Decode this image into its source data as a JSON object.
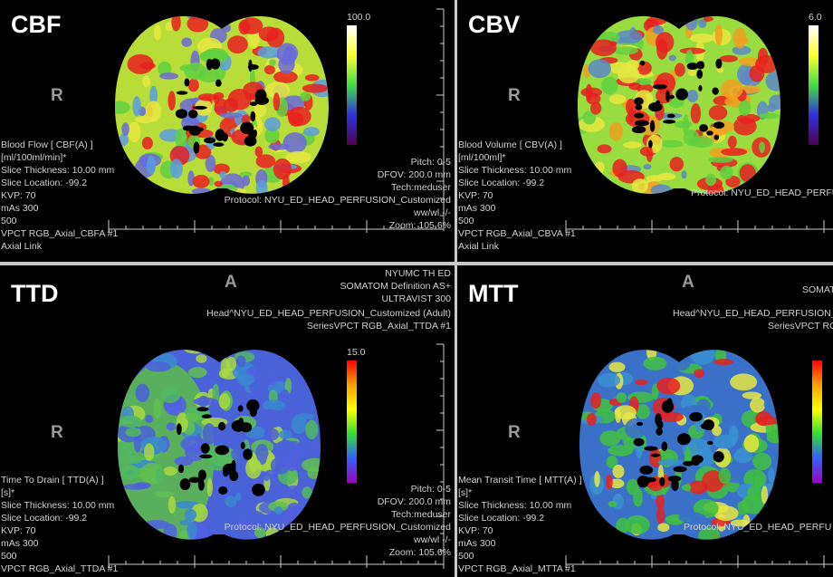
{
  "panels": [
    {
      "label": "CBF",
      "orientation": "R",
      "colorbar_max": "100.0",
      "info_left": [
        "Blood Flow [ CBF(A) ]",
        "[ml/100ml/min]*",
        "Slice Thickness: 10.00 mm",
        "Slice Location: -99.2",
        "KVP: 70",
        "mAs 300",
        "500",
        "VPCT RGB_Axial_CBFA #1",
        "Axial Link"
      ],
      "info_right": [
        "Pitch: 0-5",
        "DFOV: 200.0 mm",
        "Tech:meduser",
        "Protocol: NYU_ED_HEAD_PERFUSION_Customized",
        "ww/wl -/-",
        "Zoom: 105.6%"
      ]
    },
    {
      "label": "CBV",
      "orientation": "R",
      "colorbar_max": "6.0",
      "info_left": [
        "Blood Volume [ CBV(A) ]",
        "[ml/100ml]*",
        "Slice Thickness: 10.00 mm",
        "Slice Location: -99.2",
        "KVP: 70",
        "mAs 300",
        "500",
        "VPCT RGB_Axial_CBVA #1",
        "Axial Link"
      ],
      "info_right": [
        "Protocol: NYU_ED_HEAD_PERFU"
      ]
    },
    {
      "label": "TTD",
      "orientation": "R",
      "top_letter": "A",
      "colorbar_max": "15.0",
      "info_top": [
        "NYUMC TH ED",
        "SOMATOM Definition AS+",
        "ULTRAVIST 300",
        "Head^NYU_ED_HEAD_PERFUSION_Customized (Adult)",
        "SeriesVPCT RGB_Axial_TTDA #1"
      ],
      "info_left": [
        "Time To Drain [ TTD(A) ]",
        "[s]*",
        "Slice Thickness: 10.00 mm",
        "Slice Location: -99.2",
        "KVP: 70",
        "mAs 300",
        "500",
        "VPCT RGB_Axial_TTDA #1"
      ],
      "info_right": [
        "Pitch: 0-5",
        "DFOV: 200.0 mm",
        "Tech:meduser",
        "Protocol: NYU_ED_HEAD_PERFUSION_Customized",
        "ww/wl -/-",
        "Zoom: 105.6%"
      ]
    },
    {
      "label": "MTT",
      "orientation": "R",
      "top_letter": "A",
      "info_top": [
        "SOMATOM",
        "Head^NYU_ED_HEAD_PERFUSION_C",
        "SeriesVPCT RGB_"
      ],
      "info_left": [
        "Mean Transit Time [ MTT(A) ]",
        "[s]*",
        "Slice Thickness: 10.00 mm",
        "Slice Location: -99.2",
        "KVP: 70",
        "mAs 300",
        "500",
        "VPCT RGB_Axial_MTTA #1"
      ],
      "info_right": [
        "Protocol: NYU_ED_HEAD_PERFU"
      ]
    }
  ]
}
